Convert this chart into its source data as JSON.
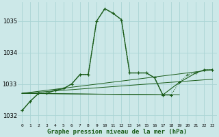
{
  "title": "Graphe pression niveau de la mer (hPa)",
  "background_color": "#cce8e8",
  "grid_color": "#aad4d4",
  "line_color": "#1a5c1a",
  "xlim": [
    -0.5,
    23.5
  ],
  "ylim": [
    1031.75,
    1035.6
  ],
  "yticks": [
    1032,
    1033,
    1034,
    1035
  ],
  "xticks": [
    0,
    1,
    2,
    3,
    4,
    5,
    6,
    7,
    8,
    9,
    10,
    11,
    12,
    13,
    14,
    15,
    16,
    17,
    18,
    19,
    20,
    21,
    22,
    23
  ],
  "main_x": [
    0,
    1,
    2,
    3,
    4,
    5,
    6,
    7,
    8,
    9,
    10,
    11,
    12,
    13,
    14,
    15,
    16,
    17,
    18
  ],
  "main_y": [
    1032.15,
    1032.45,
    1032.7,
    1032.7,
    1032.8,
    1032.85,
    1033.0,
    1033.3,
    1033.3,
    1035.0,
    1035.4,
    1035.25,
    1035.05,
    1033.35,
    1033.35,
    1033.35,
    1033.2,
    1032.65,
    1032.65
  ],
  "dot_x": [
    0,
    1,
    2,
    3,
    4,
    5,
    6,
    7,
    8,
    9,
    10,
    11,
    12,
    13,
    14,
    15,
    16,
    17,
    18,
    19,
    20,
    21,
    22,
    23
  ],
  "dot_y": [
    1032.15,
    1032.45,
    1032.7,
    1032.7,
    1032.8,
    1032.85,
    1033.0,
    1033.3,
    1033.3,
    1035.0,
    1035.4,
    1035.25,
    1035.05,
    1033.35,
    1033.35,
    1033.35,
    1033.2,
    1032.65,
    1032.65,
    1033.05,
    1033.3,
    1033.35,
    1033.45,
    1033.45
  ],
  "fan_lines": [
    {
      "x": [
        0,
        23
      ],
      "y": [
        1032.7,
        1033.45
      ]
    },
    {
      "x": [
        0,
        23
      ],
      "y": [
        1032.7,
        1033.15
      ]
    },
    {
      "x": [
        0,
        17
      ],
      "y": [
        1032.7,
        1032.65
      ]
    },
    {
      "x": [
        0,
        19
      ],
      "y": [
        1032.7,
        1032.65
      ]
    }
  ],
  "late_x": [
    17,
    19,
    21,
    22,
    23
  ],
  "late_y": [
    1032.65,
    1033.05,
    1033.35,
    1033.45,
    1033.45
  ]
}
